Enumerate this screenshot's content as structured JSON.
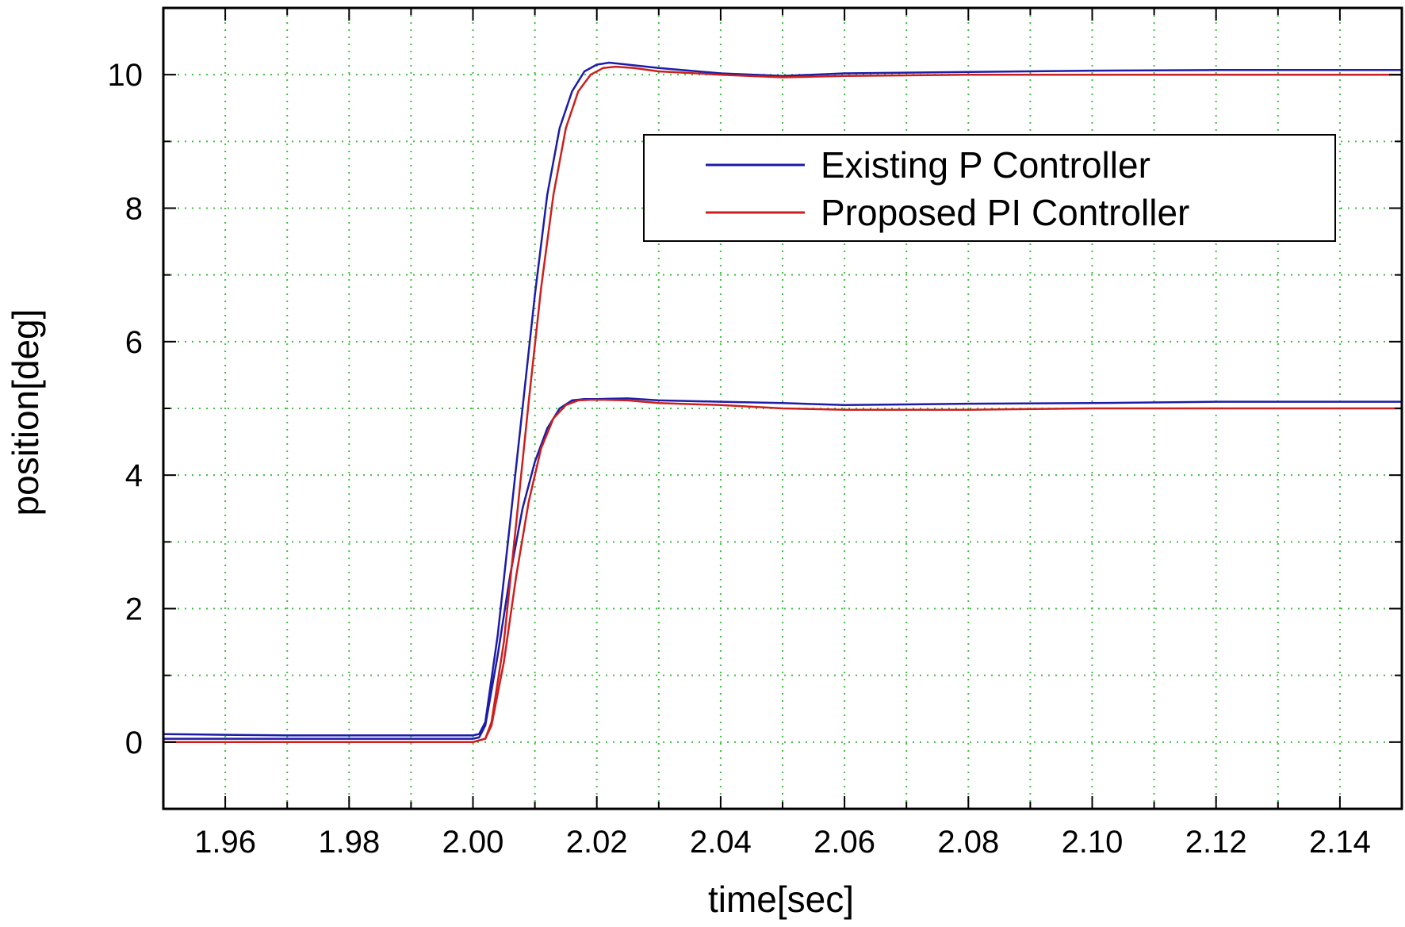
{
  "chart_data": {
    "type": "line",
    "title": "",
    "xlabel": "time[sec]",
    "ylabel": "position[deg]",
    "xlim": [
      1.95,
      2.15
    ],
    "ylim": [
      -1,
      11
    ],
    "xticks": [
      "1.96",
      "1.98",
      "2.00",
      "2.02",
      "2.04",
      "2.06",
      "2.08",
      "2.10",
      "2.12",
      "2.14"
    ],
    "yticks": [
      "0",
      "2",
      "4",
      "6",
      "8",
      "10"
    ],
    "grid": true,
    "legend_position": "upper-right",
    "series": [
      {
        "name": "Existing P Controller",
        "color": "#1c1ca8",
        "runs": [
          {
            "x": [
              1.95,
              1.96,
              1.97,
              1.98,
              1.99,
              2.0,
              2.001,
              2.002,
              2.004,
              2.006,
              2.008,
              2.01,
              2.012,
              2.014,
              2.016,
              2.018,
              2.02,
              2.022,
              2.025,
              2.03,
              2.04,
              2.05,
              2.06,
              2.08,
              2.1,
              2.12,
              2.14,
              2.15
            ],
            "y": [
              0.12,
              0.11,
              0.1,
              0.1,
              0.1,
              0.1,
              0.12,
              0.3,
              1.6,
              3.3,
              5.0,
              6.7,
              8.2,
              9.2,
              9.75,
              10.05,
              10.15,
              10.18,
              10.15,
              10.1,
              10.02,
              9.98,
              10.02,
              10.04,
              10.06,
              10.07,
              10.07,
              10.07
            ]
          },
          {
            "x": [
              1.95,
              1.96,
              1.97,
              1.98,
              1.99,
              2.0,
              2.001,
              2.002,
              2.004,
              2.006,
              2.008,
              2.01,
              2.012,
              2.014,
              2.016,
              2.018,
              2.02,
              2.025,
              2.03,
              2.04,
              2.05,
              2.06,
              2.08,
              2.1,
              2.12,
              2.14,
              2.15
            ],
            "y": [
              0.05,
              0.05,
              0.05,
              0.05,
              0.05,
              0.05,
              0.07,
              0.25,
              1.3,
              2.5,
              3.5,
              4.2,
              4.7,
              5.0,
              5.12,
              5.14,
              5.14,
              5.15,
              5.12,
              5.1,
              5.08,
              5.05,
              5.07,
              5.08,
              5.1,
              5.1,
              5.1
            ]
          }
        ]
      },
      {
        "name": "Proposed PI Controller",
        "color": "#cc1f1f",
        "runs": [
          {
            "x": [
              1.95,
              1.96,
              1.97,
              1.98,
              1.99,
              2.0,
              2.002,
              2.003,
              2.005,
              2.007,
              2.009,
              2.011,
              2.013,
              2.015,
              2.017,
              2.019,
              2.021,
              2.023,
              2.026,
              2.03,
              2.04,
              2.05,
              2.06,
              2.08,
              2.1,
              2.12,
              2.14,
              2.15
            ],
            "y": [
              0.0,
              0.0,
              0.0,
              0.0,
              0.0,
              0.0,
              0.05,
              0.3,
              1.5,
              3.3,
              5.1,
              6.8,
              8.2,
              9.2,
              9.75,
              10.0,
              10.1,
              10.12,
              10.1,
              10.05,
              10.0,
              9.96,
              9.98,
              10.0,
              10.0,
              10.0,
              10.0,
              10.0
            ]
          },
          {
            "x": [
              1.95,
              1.96,
              1.97,
              1.98,
              1.99,
              2.0,
              2.002,
              2.003,
              2.005,
              2.007,
              2.009,
              2.011,
              2.013,
              2.015,
              2.017,
              2.019,
              2.021,
              2.025,
              2.03,
              2.04,
              2.05,
              2.06,
              2.08,
              2.1,
              2.12,
              2.14,
              2.15
            ],
            "y": [
              0.0,
              0.0,
              0.0,
              0.0,
              0.0,
              0.0,
              0.05,
              0.25,
              1.2,
              2.5,
              3.6,
              4.4,
              4.85,
              5.05,
              5.12,
              5.13,
              5.13,
              5.12,
              5.08,
              5.05,
              5.0,
              4.98,
              4.98,
              5.0,
              5.0,
              5.0,
              5.0
            ]
          }
        ]
      }
    ]
  }
}
